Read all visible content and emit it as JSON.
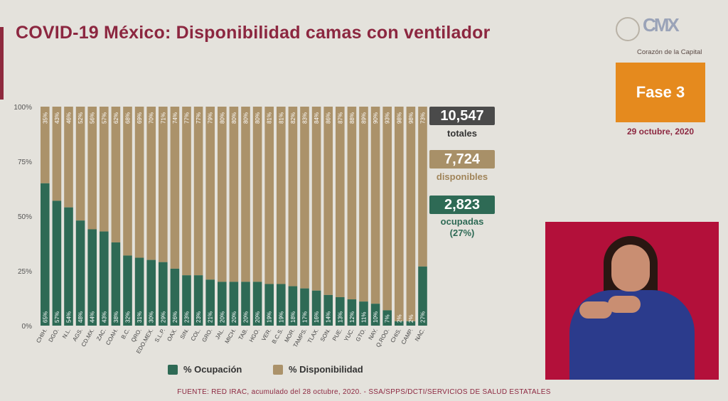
{
  "header": {
    "title": "COVID-19 México: Disponibilidad camas con ventilador",
    "logo_text": "Corazón de la Capital",
    "phase": "Fase 3",
    "date": "29 octubre, 2020"
  },
  "stats": {
    "total_value": "10,547",
    "total_label": "totales",
    "available_value": "7,724",
    "available_label": "disponibles",
    "occupied_value": "2,823",
    "occupied_label": "ocupadas",
    "occupied_pct": "(27%)"
  },
  "legend": {
    "occupied": "% Ocupación",
    "available": "% Disponibilidad"
  },
  "source": "FUENTE: RED IRAC, acumulado del 28 octubre, 2020. -  SSA/SPPS/DCTI/SERVICIOS DE SALUD ESTATALES",
  "colors": {
    "occupied": "#2e6a55",
    "available": "#ab926a",
    "title": "#8c2740",
    "total_box": "#4a4a4a",
    "available_box": "#a89068",
    "occupied_box": "#2e6a55",
    "phase": "#e58a1e"
  },
  "chart_data": {
    "type": "bar",
    "stacked": true,
    "categories": [
      "CHIH.",
      "DGO.",
      "N.L.",
      "AGS.",
      "CD.MX.",
      "ZAC.",
      "COAH.",
      "B.C.",
      "QRO.",
      "EDO.MEX.",
      "S.L.P.",
      "OAX.",
      "SIN.",
      "COL.",
      "GRO.",
      "JAL.",
      "MICH.",
      "TAB.",
      "HGO.",
      "VER.",
      "B.C.S.",
      "MOR.",
      "TAMPS.",
      "TLAX.",
      "SON.",
      "PUE.",
      "YUC.",
      "GTO.",
      "NAY.",
      "Q.ROO.",
      "CHIS.",
      "CAMP.",
      "NAC."
    ],
    "series": [
      {
        "name": "% Ocupación",
        "values": [
          65,
          57,
          54,
          48,
          44,
          43,
          38,
          32,
          31,
          30,
          29,
          26,
          23,
          23,
          21,
          20,
          20,
          20,
          20,
          19,
          19,
          18,
          17,
          16,
          14,
          13,
          12,
          11,
          10,
          7,
          2,
          2,
          27
        ]
      },
      {
        "name": "% Disponibilidad",
        "values": [
          35,
          43,
          46,
          52,
          56,
          57,
          62,
          68,
          69,
          70,
          71,
          74,
          77,
          77,
          79,
          80,
          80,
          80,
          80,
          81,
          81,
          82,
          83,
          84,
          86,
          87,
          88,
          89,
          90,
          93,
          98,
          98,
          73
        ]
      }
    ],
    "ylim": [
      0,
      100
    ],
    "yticks": [
      "0%",
      "25%",
      "50%",
      "75%",
      "100%"
    ],
    "xlabel": "",
    "ylabel": "",
    "legend_position": "bottom"
  }
}
